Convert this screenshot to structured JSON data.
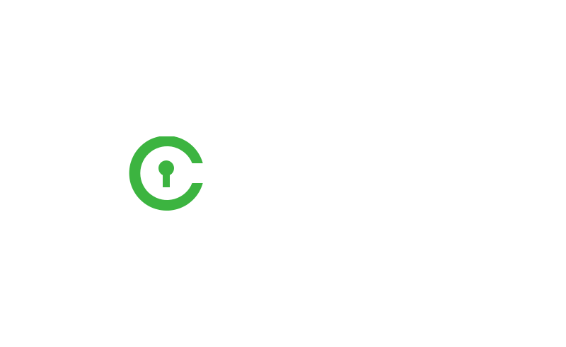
{
  "logo": {
    "icon": "lock-c-logo-icon",
    "color": "#3cb440"
  },
  "background_color": "#ffffff"
}
